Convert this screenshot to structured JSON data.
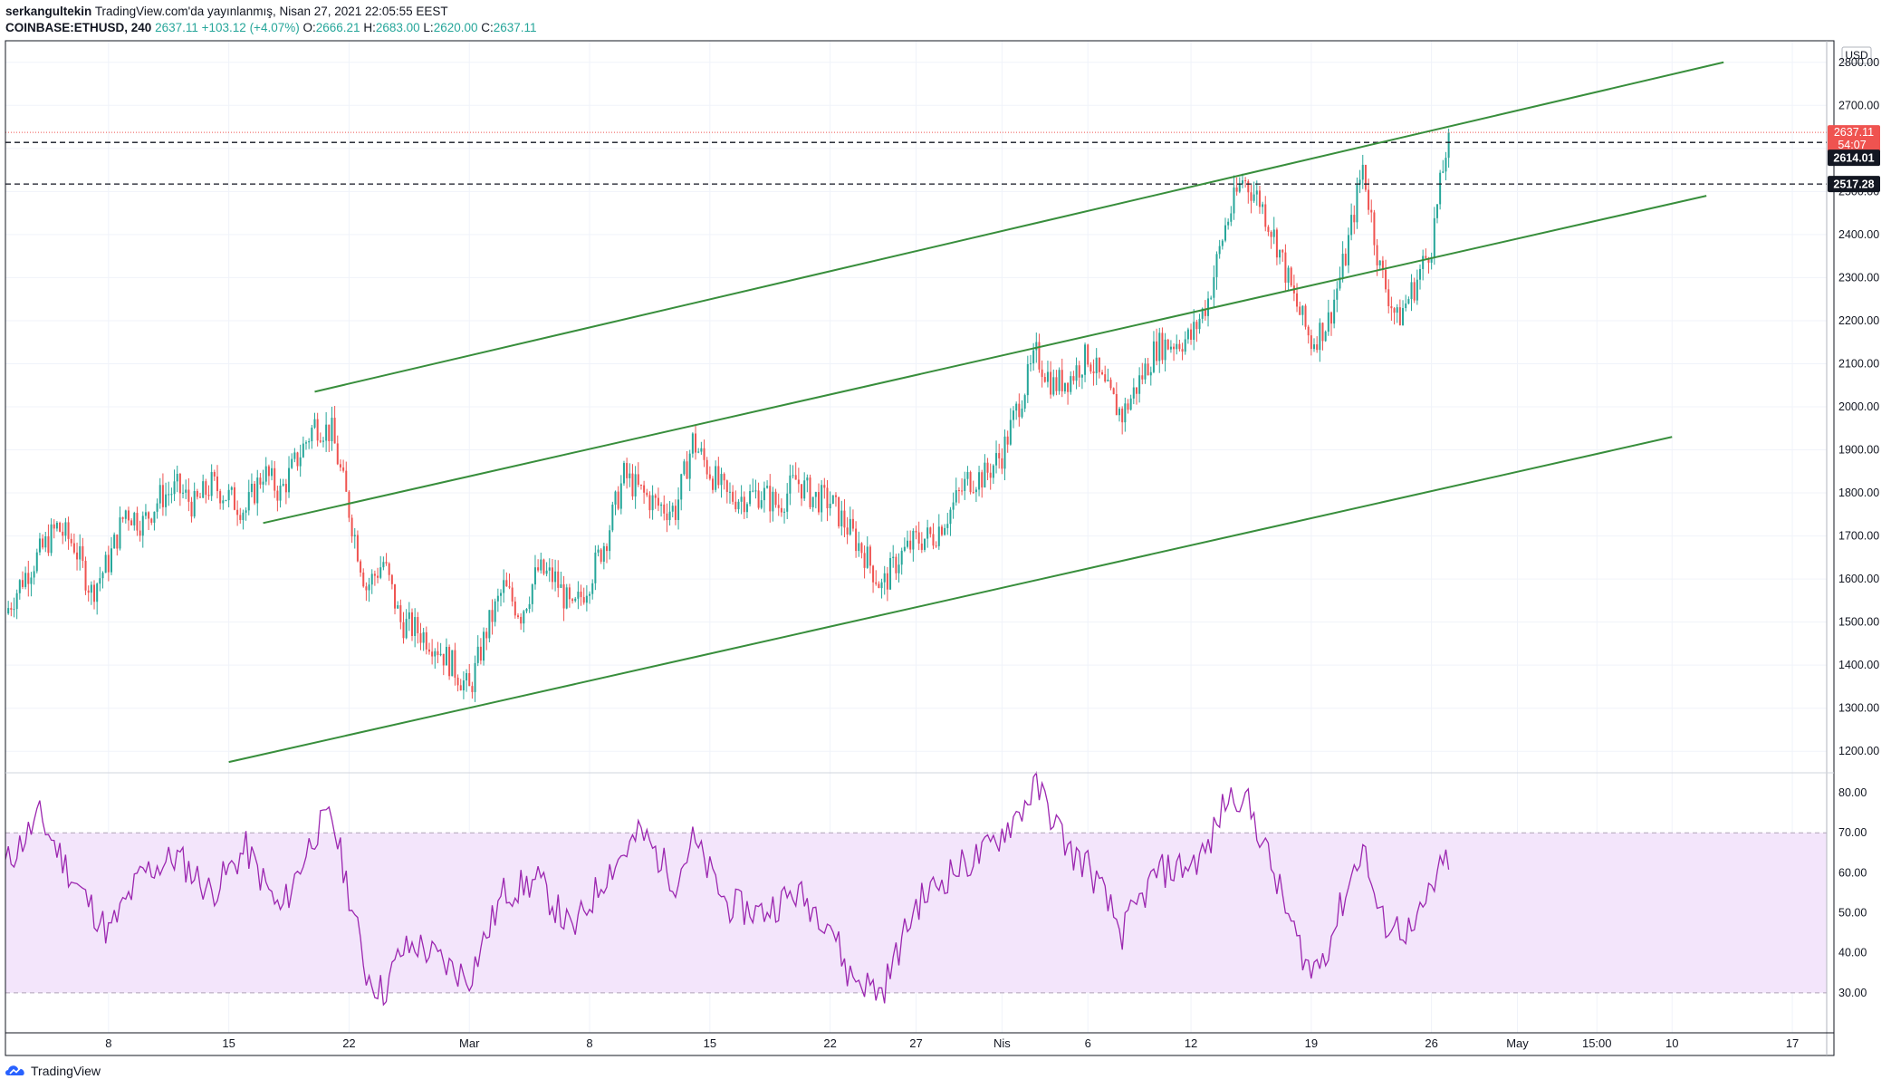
{
  "header": {
    "publisher": "serkangultekin",
    "published_text": "TradingView.com'da yayınlanmış, Nisan 27, 2021 22:05:55 EEST",
    "symbol": "COINBASE:ETHUSD, 240",
    "last": "2637.11",
    "change": "+103.12 (+4.07%)",
    "o_label": "O:",
    "o_value": "2666.21",
    "h_label": "H:",
    "h_value": "2683.00",
    "l_label": "L:",
    "l_value": "2620.00",
    "c_label": "C:",
    "c_value": "2637.11"
  },
  "footer": {
    "brand": "TradingView",
    "logo_icon": "tradingview-logo-icon"
  },
  "colors": {
    "up": "#26a69a",
    "down": "#ef5350",
    "channel": "#388e3c",
    "rsi_line": "#9c27b0",
    "rsi_band": "#f3e5fb",
    "price_tag": "#ef5350",
    "level_tag": "#131722"
  },
  "chart_data": [
    {
      "type": "candlestick",
      "symbol": "COINBASE:ETHUSD",
      "interval": "240",
      "currency": "USD",
      "ylim": [
        1150,
        2850
      ],
      "yticks": [
        1200,
        1300,
        1400,
        1500,
        1600,
        1700,
        1800,
        1900,
        2000,
        2100,
        2200,
        2300,
        2400,
        2500,
        2600,
        2700,
        2800
      ],
      "ytick_labels": [
        "1200.00",
        "1300.00",
        "1400.00",
        "1500.00",
        "1600.00",
        "1700.00",
        "1800.00",
        "1900.00",
        "2000.00",
        "2100.00",
        "2200.00",
        "2300.00",
        "2400.00",
        "2500.00",
        "2600.00",
        "2700.00",
        "2800.00"
      ],
      "x_start": "2021-02-02",
      "x_end": "2021-05-19",
      "xticks": [
        {
          "date": "2021-02-08",
          "label": "8"
        },
        {
          "date": "2021-02-15",
          "label": "15"
        },
        {
          "date": "2021-02-22",
          "label": "22"
        },
        {
          "date": "2021-03-01",
          "label": "Mar"
        },
        {
          "date": "2021-03-08",
          "label": "8"
        },
        {
          "date": "2021-03-15",
          "label": "15"
        },
        {
          "date": "2021-03-22",
          "label": "22"
        },
        {
          "date": "2021-03-27",
          "label": "27"
        },
        {
          "date": "2021-04-01",
          "label": "Nis"
        },
        {
          "date": "2021-04-06",
          "label": "6"
        },
        {
          "date": "2021-04-12",
          "label": "12"
        },
        {
          "date": "2021-04-19",
          "label": "19"
        },
        {
          "date": "2021-04-26",
          "label": "26"
        },
        {
          "date": "2021-05-01",
          "label": "May"
        },
        {
          "date": "2021-05-05 15:00",
          "label": "15:00"
        },
        {
          "date": "2021-05-10",
          "label": "10"
        },
        {
          "date": "2021-05-17",
          "label": "17"
        }
      ],
      "close_path": [
        [
          "2021-02-02",
          1520
        ],
        [
          "2021-02-03",
          1600
        ],
        [
          "2021-02-04",
          1660
        ],
        [
          "2021-02-05",
          1720
        ],
        [
          "2021-02-06",
          1680
        ],
        [
          "2021-02-07",
          1570
        ],
        [
          "2021-02-08",
          1640
        ],
        [
          "2021-02-09",
          1760
        ],
        [
          "2021-02-10",
          1730
        ],
        [
          "2021-02-11",
          1790
        ],
        [
          "2021-02-12",
          1810
        ],
        [
          "2021-02-13",
          1770
        ],
        [
          "2021-02-14",
          1820
        ],
        [
          "2021-02-15",
          1790
        ],
        [
          "2021-02-16",
          1760
        ],
        [
          "2021-02-17",
          1850
        ],
        [
          "2021-02-18",
          1800
        ],
        [
          "2021-02-19",
          1880
        ],
        [
          "2021-02-20",
          1960
        ],
        [
          "2021-02-21",
          1940
        ],
        [
          "2021-02-22",
          1760
        ],
        [
          "2021-02-23",
          1580
        ],
        [
          "2021-02-24",
          1640
        ],
        [
          "2021-02-25",
          1500
        ],
        [
          "2021-02-26",
          1480
        ],
        [
          "2021-02-27",
          1450
        ],
        [
          "2021-02-28",
          1400
        ],
        [
          "2021-03-01",
          1340
        ],
        [
          "2021-03-02",
          1480
        ],
        [
          "2021-03-03",
          1580
        ],
        [
          "2021-03-04",
          1520
        ],
        [
          "2021-03-05",
          1620
        ],
        [
          "2021-03-06",
          1600
        ],
        [
          "2021-03-07",
          1520
        ],
        [
          "2021-03-08",
          1600
        ],
        [
          "2021-03-09",
          1700
        ],
        [
          "2021-03-10",
          1840
        ],
        [
          "2021-03-11",
          1800
        ],
        [
          "2021-03-12",
          1770
        ],
        [
          "2021-03-13",
          1760
        ],
        [
          "2021-03-14",
          1920
        ],
        [
          "2021-03-15",
          1850
        ],
        [
          "2021-03-16",
          1790
        ],
        [
          "2021-03-17",
          1790
        ],
        [
          "2021-03-18",
          1800
        ],
        [
          "2021-03-19",
          1770
        ],
        [
          "2021-03-20",
          1830
        ],
        [
          "2021-03-21",
          1790
        ],
        [
          "2021-03-22",
          1780
        ],
        [
          "2021-03-23",
          1720
        ],
        [
          "2021-03-24",
          1660
        ],
        [
          "2021-03-25",
          1580
        ],
        [
          "2021-03-26",
          1650
        ],
        [
          "2021-03-27",
          1690
        ],
        [
          "2021-03-28",
          1700
        ],
        [
          "2021-03-29",
          1760
        ],
        [
          "2021-03-30",
          1830
        ],
        [
          "2021-03-31",
          1840
        ],
        [
          "2021-04-01",
          1890
        ],
        [
          "2021-04-02",
          2010
        ],
        [
          "2021-04-03",
          2120
        ],
        [
          "2021-04-04",
          2050
        ],
        [
          "2021-04-05",
          2070
        ],
        [
          "2021-04-06",
          2120
        ],
        [
          "2021-04-07",
          2040
        ],
        [
          "2021-04-08",
          1980
        ],
        [
          "2021-04-09",
          2060
        ],
        [
          "2021-04-10",
          2140
        ],
        [
          "2021-04-11",
          2150
        ],
        [
          "2021-04-12",
          2160
        ],
        [
          "2021-04-13",
          2250
        ],
        [
          "2021-04-14",
          2420
        ],
        [
          "2021-04-15",
          2530
        ],
        [
          "2021-04-16",
          2480
        ],
        [
          "2021-04-17",
          2380
        ],
        [
          "2021-04-18",
          2250
        ],
        [
          "2021-04-19",
          2150
        ],
        [
          "2021-04-20",
          2200
        ],
        [
          "2021-04-21",
          2350
        ],
        [
          "2021-04-22",
          2560
        ],
        [
          "2021-04-23",
          2320
        ],
        [
          "2021-04-24",
          2200
        ],
        [
          "2021-04-25",
          2280
        ],
        [
          "2021-04-26",
          2380
        ],
        [
          "2021-04-27",
          2637.11
        ]
      ],
      "last_price": {
        "value": 2637.11,
        "label": "2637.11",
        "countdown": "54:07"
      },
      "horizontal_levels": [
        {
          "value": 2614.01,
          "label": "2614.01",
          "style": "dashed"
        },
        {
          "value": 2517.28,
          "label": "2517.28",
          "style": "dashed"
        }
      ],
      "trend_lines": [
        {
          "from": [
            "2021-02-20",
            2035
          ],
          "to": [
            "2021-05-13",
            2800
          ]
        },
        {
          "from": [
            "2021-02-17",
            1730
          ],
          "to": [
            "2021-05-12",
            2490
          ]
        },
        {
          "from": [
            "2021-02-15",
            1175
          ],
          "to": [
            "2021-05-10",
            1930
          ]
        }
      ]
    },
    {
      "type": "line",
      "indicator": "RSI",
      "ylim": [
        20,
        85
      ],
      "yticks": [
        30,
        40,
        50,
        60,
        70,
        80
      ],
      "ytick_labels": [
        "30.00",
        "40.00",
        "50.00",
        "60.00",
        "70.00",
        "80.00"
      ],
      "band": [
        30,
        70
      ],
      "series": [
        {
          "values_path": [
            [
              "2021-02-02",
              62
            ],
            [
              "2021-02-04",
              74
            ],
            [
              "2021-02-06",
              58
            ],
            [
              "2021-02-08",
              45
            ],
            [
              "2021-02-10",
              60
            ],
            [
              "2021-02-12",
              64
            ],
            [
              "2021-02-14",
              55
            ],
            [
              "2021-02-16",
              66
            ],
            [
              "2021-02-18",
              50
            ],
            [
              "2021-02-20",
              70
            ],
            [
              "2021-02-21",
              74
            ],
            [
              "2021-02-22",
              55
            ],
            [
              "2021-02-23",
              35
            ],
            [
              "2021-02-24",
              30
            ],
            [
              "2021-02-25",
              40
            ],
            [
              "2021-02-26",
              42
            ],
            [
              "2021-02-28",
              36
            ],
            [
              "2021-03-01",
              34
            ],
            [
              "2021-03-03",
              55
            ],
            [
              "2021-03-05",
              58
            ],
            [
              "2021-03-07",
              45
            ],
            [
              "2021-03-09",
              60
            ],
            [
              "2021-03-11",
              70
            ],
            [
              "2021-03-13",
              58
            ],
            [
              "2021-03-14",
              68
            ],
            [
              "2021-03-16",
              52
            ],
            [
              "2021-03-18",
              50
            ],
            [
              "2021-03-20",
              55
            ],
            [
              "2021-03-22",
              48
            ],
            [
              "2021-03-23",
              35
            ],
            [
              "2021-03-25",
              30
            ],
            [
              "2021-03-27",
              52
            ],
            [
              "2021-03-29",
              60
            ],
            [
              "2021-03-31",
              65
            ],
            [
              "2021-04-02",
              75
            ],
            [
              "2021-04-03",
              82
            ],
            [
              "2021-04-05",
              65
            ],
            [
              "2021-04-06",
              62
            ],
            [
              "2021-04-08",
              45
            ],
            [
              "2021-04-10",
              60
            ],
            [
              "2021-04-12",
              62
            ],
            [
              "2021-04-13",
              66
            ],
            [
              "2021-04-14",
              78
            ],
            [
              "2021-04-15",
              80
            ],
            [
              "2021-04-16",
              70
            ],
            [
              "2021-04-18",
              45
            ],
            [
              "2021-04-19",
              35
            ],
            [
              "2021-04-20",
              42
            ],
            [
              "2021-04-21",
              55
            ],
            [
              "2021-04-22",
              67
            ],
            [
              "2021-04-23",
              48
            ],
            [
              "2021-04-25",
              45
            ],
            [
              "2021-04-26",
              56
            ],
            [
              "2021-04-27",
              64
            ]
          ]
        }
      ]
    }
  ]
}
